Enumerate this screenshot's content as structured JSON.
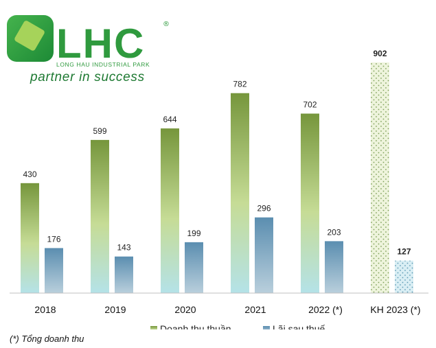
{
  "logo": {
    "brand": "LHC",
    "registered": "®",
    "subtitle": "LONG HAU INDUSTRIAL PARK",
    "tagline": "partner in success",
    "colors": {
      "green": "#2f9a3e",
      "dark_green": "#1f7a33",
      "light_green": "#8cc152"
    }
  },
  "footnote": "(*) Tổng doanh thu",
  "chart_data": {
    "type": "bar",
    "categories": [
      "2018",
      "2019",
      "2020",
      "2021",
      "2022 (*)",
      "KH 2023 (*)"
    ],
    "series": [
      {
        "name": "Doanh thu thuần",
        "values": [
          430,
          599,
          644,
          782,
          702,
          902
        ],
        "labels": [
          "430",
          "599",
          "644",
          "782",
          "702",
          "902"
        ],
        "color_top": "#76963c",
        "color_mid": "#c6dc96",
        "color_bottom": "#b4e2e8",
        "plan_style": "dotted-light-green"
      },
      {
        "name": "Lãi sau thuế",
        "values": [
          176,
          143,
          199,
          296,
          203,
          127
        ],
        "labels": [
          "176",
          "143",
          "199",
          "296",
          "203",
          "127"
        ],
        "color_top": "#5b8eb0",
        "color_bottom": "#b9cfdc",
        "plan_style": "dotted-light-blue"
      }
    ],
    "planned_category_index": 5,
    "ylim": [
      0,
      950
    ],
    "grid": false,
    "legend": "bottom"
  }
}
